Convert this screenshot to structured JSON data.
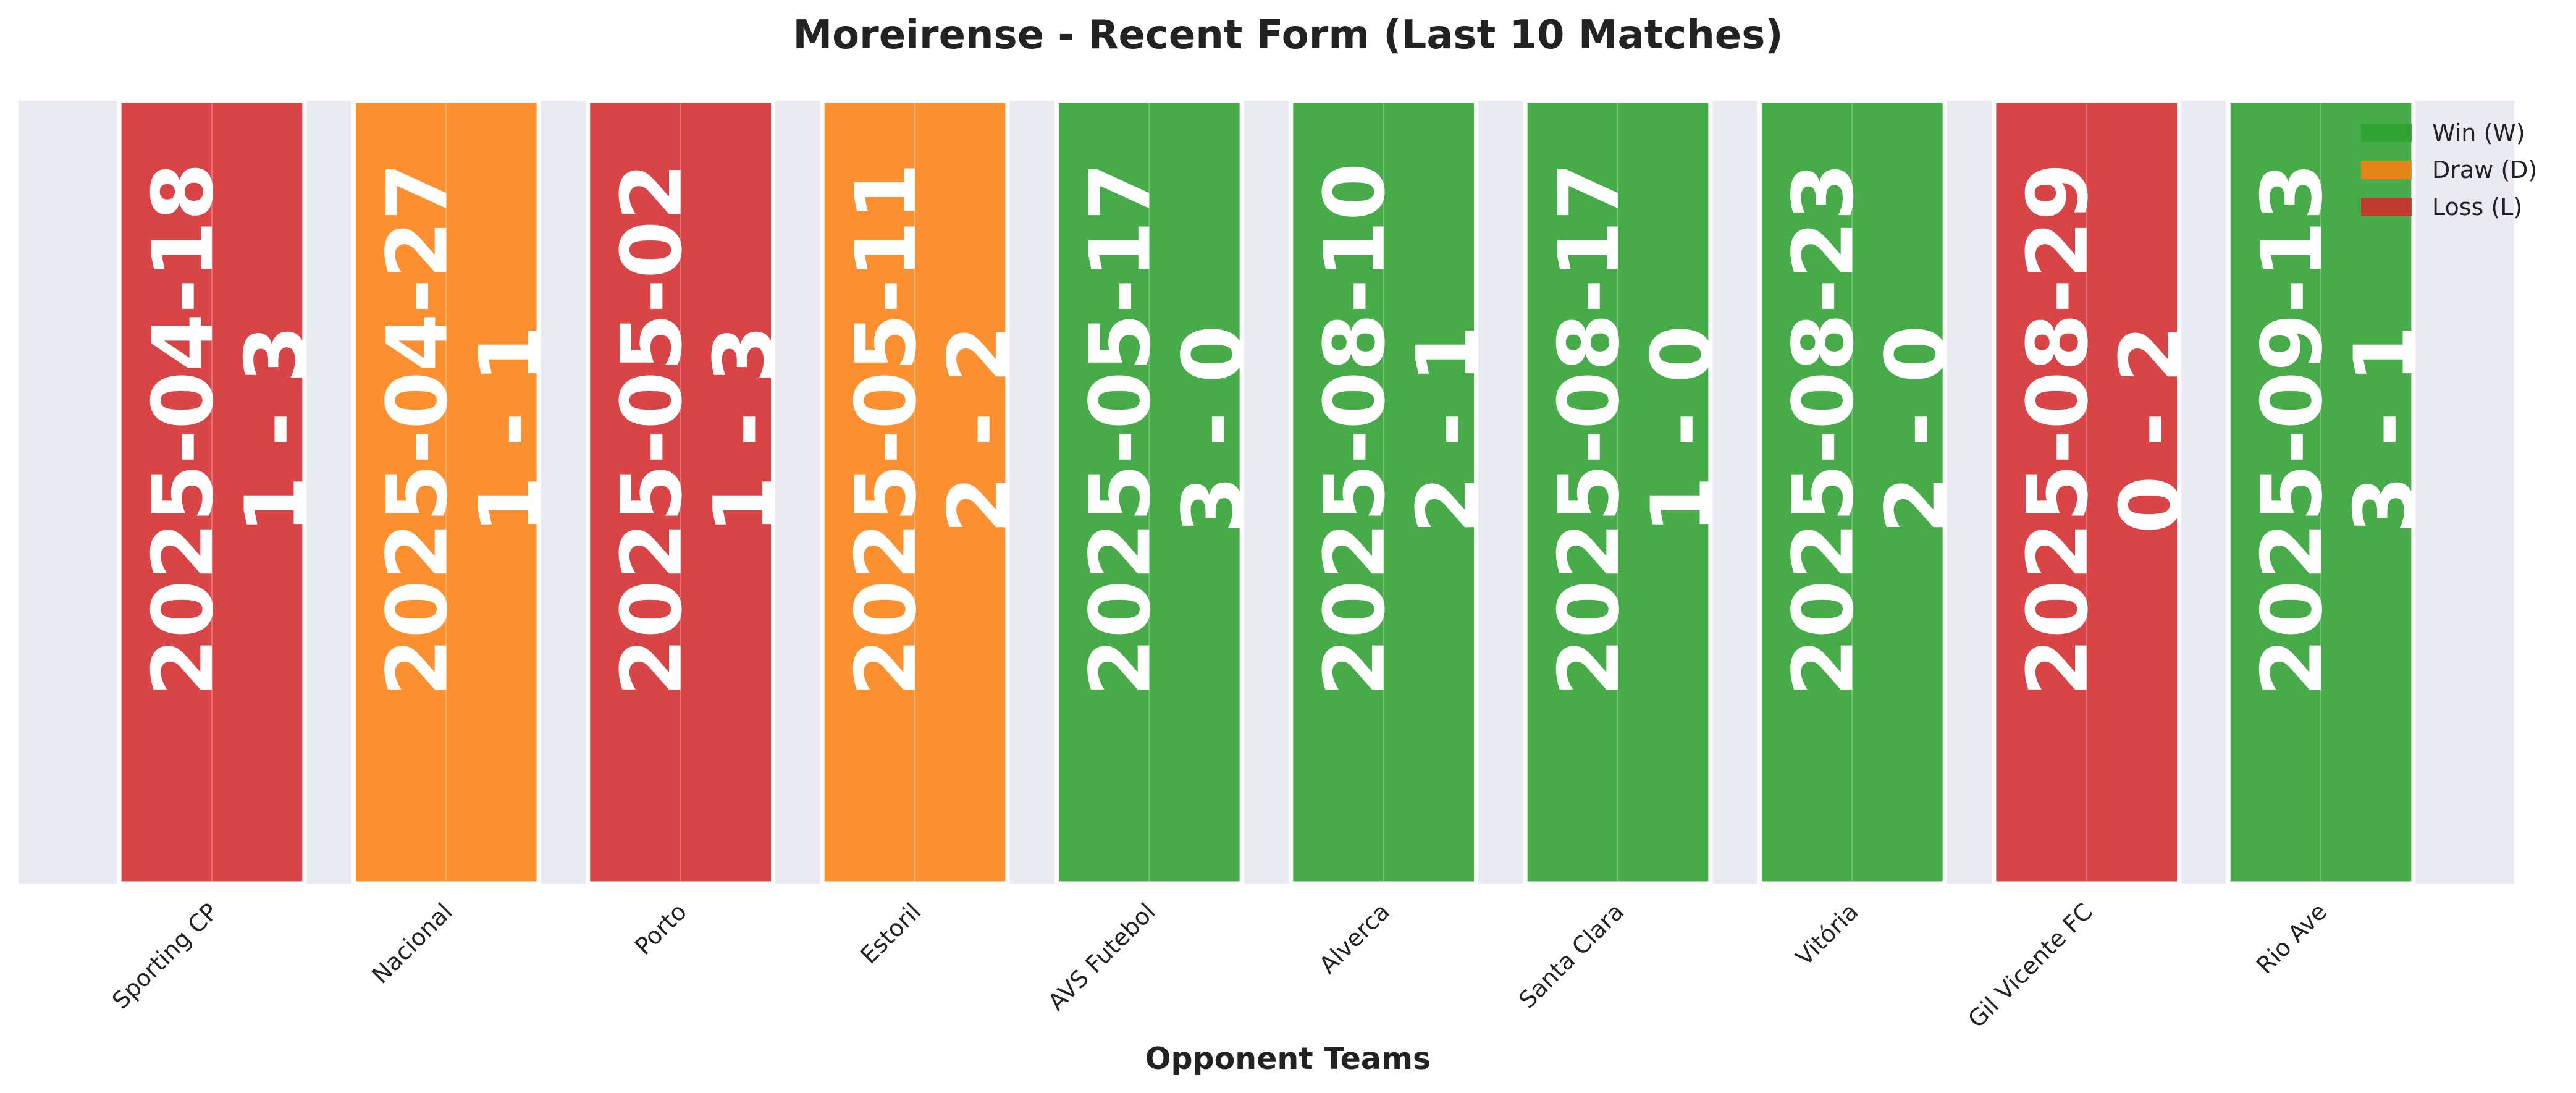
{
  "chart_data": {
    "type": "bar",
    "title": "Moreirense - Recent Form (Last 10 Matches)",
    "xlabel": "Opponent Teams",
    "ylabel": "",
    "grid": true,
    "legend_position": "top-right",
    "legend": [
      {
        "label": "Win (W)",
        "result": "W"
      },
      {
        "label": "Draw (D)",
        "result": "D"
      },
      {
        "label": "Loss (L)",
        "result": "L"
      }
    ],
    "colors": {
      "W": "#2ca02c",
      "D": "#ff7f0e",
      "L": "#d62728"
    },
    "matches": [
      {
        "opponent": "Sporting CP",
        "date": "2025-04-18",
        "score": "1 - 3",
        "result": "L"
      },
      {
        "opponent": "Nacional",
        "date": "2025-04-27",
        "score": "1 - 1",
        "result": "D"
      },
      {
        "opponent": "Porto",
        "date": "2025-05-02",
        "score": "1 - 3",
        "result": "L"
      },
      {
        "opponent": "Estoril",
        "date": "2025-05-11",
        "score": "2 - 2",
        "result": "D"
      },
      {
        "opponent": "AVS Futebol",
        "date": "2025-05-17",
        "score": "3 - 0",
        "result": "W"
      },
      {
        "opponent": "Alverca",
        "date": "2025-08-10",
        "score": "2 - 1",
        "result": "W"
      },
      {
        "opponent": "Santa Clara",
        "date": "2025-08-17",
        "score": "1 - 0",
        "result": "W"
      },
      {
        "opponent": "Vitória",
        "date": "2025-08-23",
        "score": "2 - 0",
        "result": "W"
      },
      {
        "opponent": "Gil Vicente FC",
        "date": "2025-08-29",
        "score": "0 - 2",
        "result": "L"
      },
      {
        "opponent": "Rio Ave",
        "date": "2025-09-13",
        "score": "3 - 1",
        "result": "W"
      }
    ]
  }
}
